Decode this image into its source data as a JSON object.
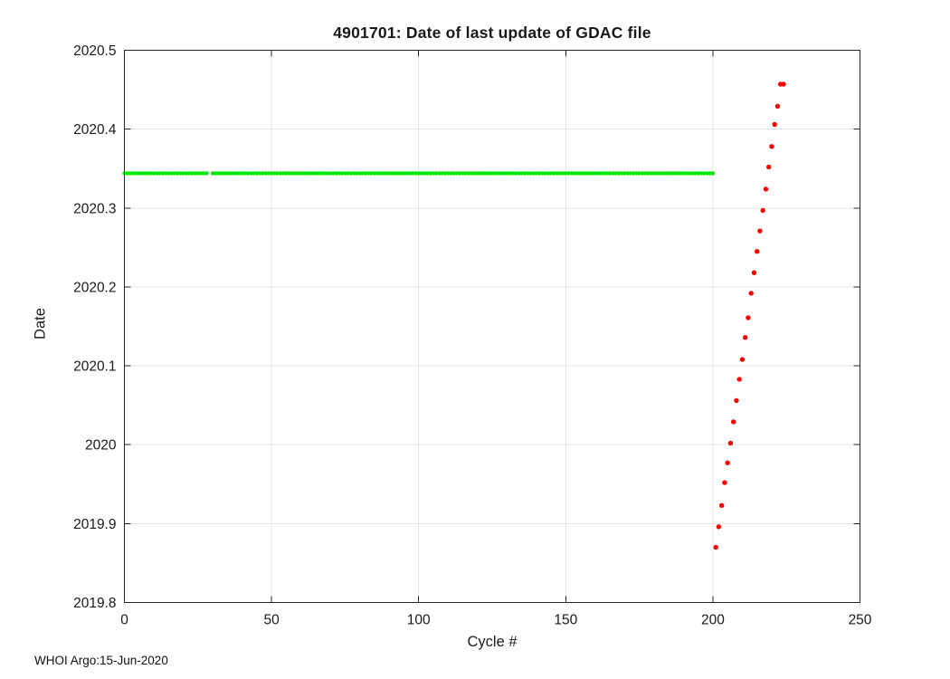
{
  "chart_data": {
    "type": "scatter",
    "title": "4901701: Date of last update of GDAC file",
    "xlabel": "Cycle #",
    "ylabel": "Date",
    "xlim": [
      0,
      250
    ],
    "ylim": [
      2019.8,
      2020.5
    ],
    "x_ticks": [
      0,
      50,
      100,
      150,
      200,
      250
    ],
    "x_tick_labels": [
      "0",
      "50",
      "100",
      "150",
      "200",
      "250"
    ],
    "y_ticks": [
      2019.8,
      2019.9,
      2020,
      2020.1,
      2020.2,
      2020.3,
      2020.4,
      2020.5
    ],
    "y_tick_labels": [
      "2019.8",
      "2019.9",
      "2020",
      "2020.1",
      "2020.2",
      "2020.3",
      "2020.4",
      "2020.5"
    ],
    "grid": true,
    "legend": "none",
    "series": [
      {
        "name": "gdac-update-date-constant",
        "description": "One dot per cycle, all updated on the same date",
        "color": "#00ea00",
        "marker_size_px": 4.4,
        "x_start": 0,
        "x_end": 200,
        "x_step": 1,
        "missing_x": [
          29
        ],
        "y_constant": 2020.344
      },
      {
        "name": "recent-cycle-updates",
        "description": "Cycles updated individually on later dates",
        "color": "#ff0000",
        "marker_size_px": 5.4,
        "points": [
          [
            201,
            2019.87
          ],
          [
            202,
            2019.896
          ],
          [
            203,
            2019.923
          ],
          [
            204,
            2019.952
          ],
          [
            205,
            2019.977
          ],
          [
            206,
            2020.002
          ],
          [
            207,
            2020.029
          ],
          [
            208,
            2020.056
          ],
          [
            209,
            2020.083
          ],
          [
            210,
            2020.108
          ],
          [
            211,
            2020.136
          ],
          [
            212,
            2020.161
          ],
          [
            213,
            2020.192
          ],
          [
            214,
            2020.218
          ],
          [
            215,
            2020.245
          ],
          [
            216,
            2020.271
          ],
          [
            217,
            2020.297
          ],
          [
            218,
            2020.324
          ],
          [
            219,
            2020.352
          ],
          [
            220,
            2020.378
          ],
          [
            221,
            2020.406
          ],
          [
            222,
            2020.429
          ],
          [
            223,
            2020.457
          ],
          [
            224,
            2020.457
          ]
        ]
      }
    ]
  },
  "footer": {
    "credit": "WHOI Argo:15-Jun-2020"
  },
  "colors": {
    "background": "#ffffff",
    "axis": "#262626",
    "grid": "#e4e4e4",
    "text": "#1a1a1a",
    "series_green": "#00ea00",
    "series_red": "#ff0000"
  }
}
